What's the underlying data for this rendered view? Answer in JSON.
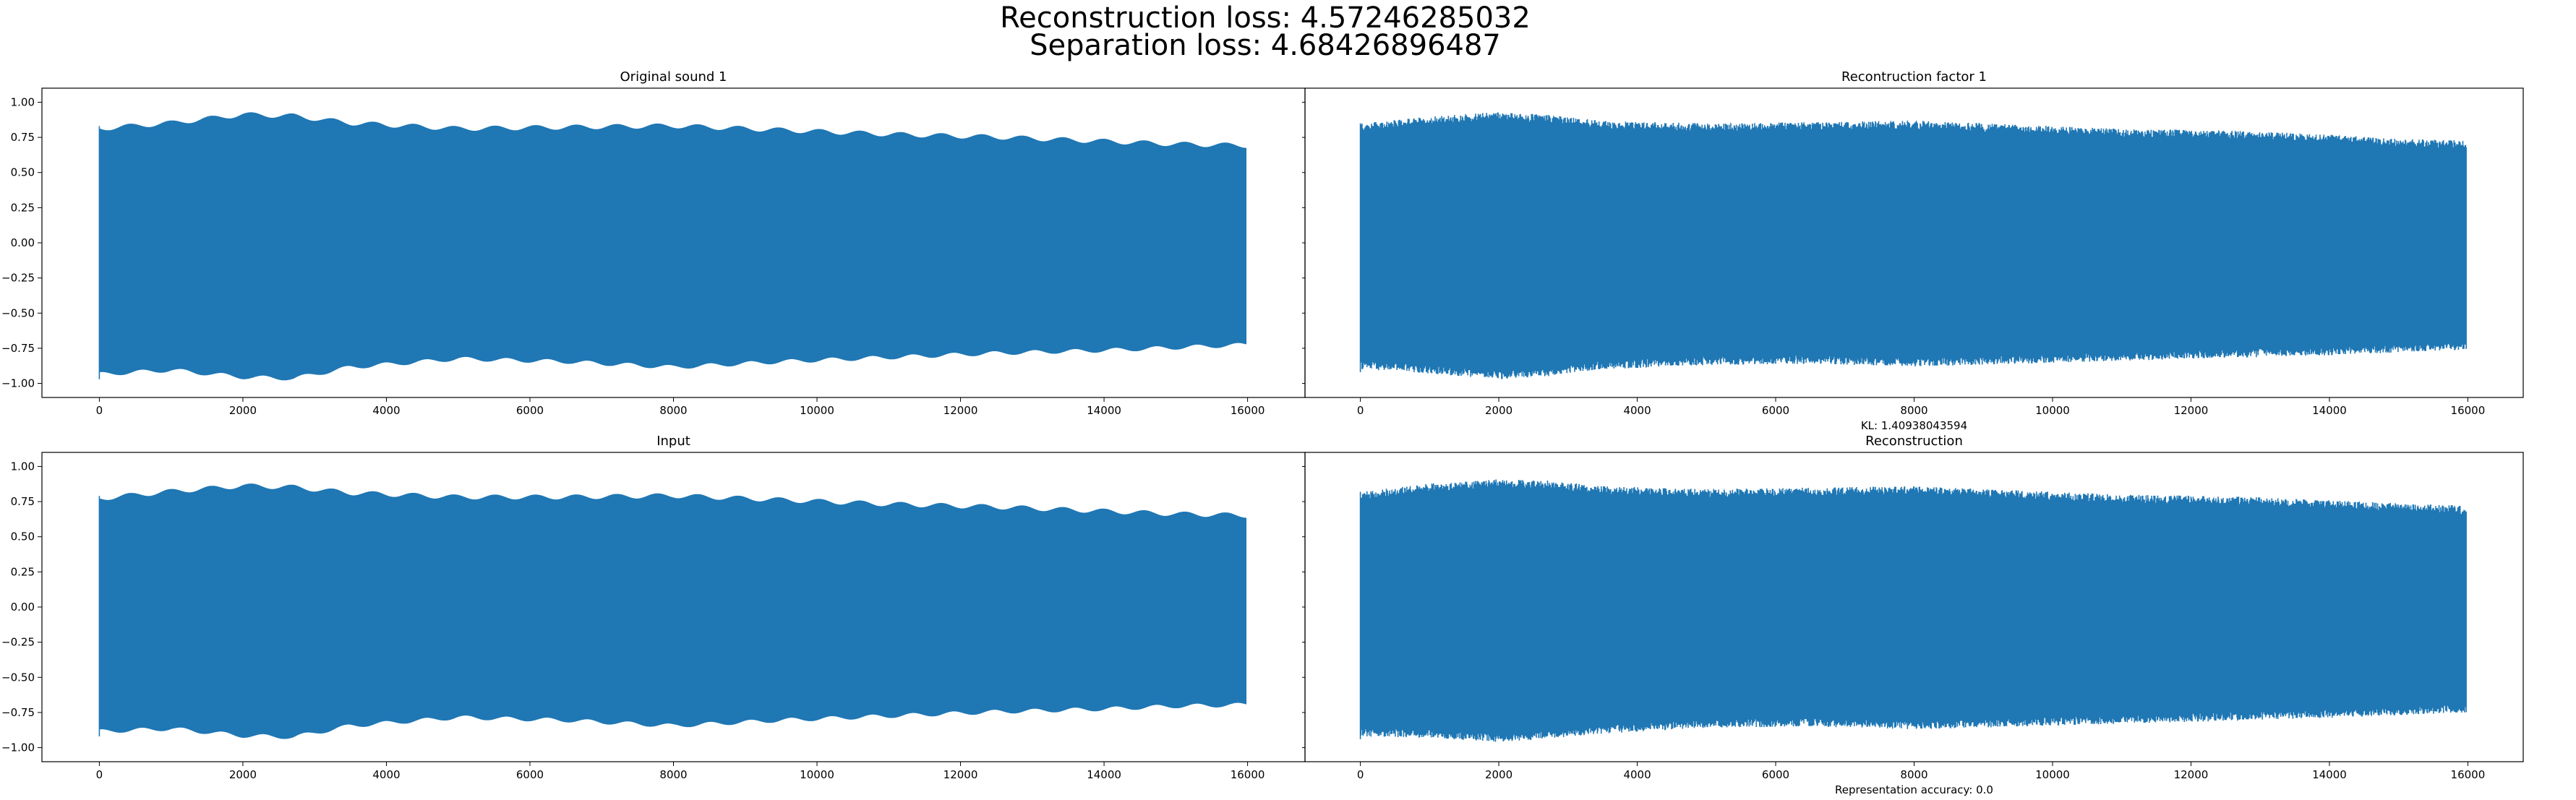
{
  "figure": {
    "suptitle_lines": [
      "Reconstruction loss: 4.57246285032",
      "Separation loss: 4.68426896487"
    ]
  },
  "style": {
    "series_color": "#1f77b4",
    "background": "#ffffff",
    "axis_color": "#000000"
  },
  "chart_data": [
    {
      "type": "line",
      "title": "Original sound 1",
      "xlabel": "",
      "ylabel": "",
      "xlim": [
        -800,
        16800
      ],
      "ylim": [
        -1.1,
        1.1
      ],
      "xticks": [
        0,
        2000,
        4000,
        6000,
        8000,
        10000,
        12000,
        14000,
        16000
      ],
      "yticks": [
        1.0,
        0.75,
        0.5,
        0.25,
        0.0,
        -0.25,
        -0.5,
        -0.75,
        -1.0
      ],
      "ytick_labels": [
        "1.00",
        "0.75",
        "0.50",
        "0.25",
        "0.00",
        "−0.25",
        "−0.50",
        "−0.75",
        "−1.00"
      ],
      "grid": false,
      "series": [
        {
          "n_samples": 16000,
          "envelope_x": [
            0,
            1000,
            2000,
            2700,
            3500,
            5000,
            6500,
            8000,
            9500,
            11000,
            12500,
            14000,
            15000,
            15980
          ],
          "envelope_upper": [
            0.83,
            0.87,
            0.93,
            0.92,
            0.87,
            0.83,
            0.84,
            0.85,
            0.82,
            0.79,
            0.77,
            0.74,
            0.72,
            0.71
          ],
          "envelope_lower": [
            -0.95,
            -0.92,
            -0.97,
            -0.98,
            -0.9,
            -0.84,
            -0.86,
            -0.9,
            -0.86,
            -0.83,
            -0.8,
            -0.78,
            -0.76,
            -0.74
          ]
        }
      ]
    },
    {
      "type": "line",
      "title": "Recontruction factor 1",
      "xlabel": "KL: 1.40938043594",
      "ylabel": "",
      "xlim": [
        -800,
        16800
      ],
      "ylim": [
        -1.1,
        1.1
      ],
      "xticks": [
        0,
        2000,
        4000,
        6000,
        8000,
        10000,
        12000,
        14000,
        16000
      ],
      "yticks": [],
      "grid": false,
      "series": [
        {
          "n_samples": 16000,
          "envelope_x": [
            0,
            1000,
            2000,
            2700,
            3500,
            5000,
            6500,
            8000,
            9500,
            11000,
            12500,
            14000,
            15000,
            15980
          ],
          "envelope_upper": [
            0.85,
            0.9,
            0.93,
            0.91,
            0.87,
            0.85,
            0.86,
            0.87,
            0.84,
            0.81,
            0.8,
            0.77,
            0.74,
            0.73
          ],
          "envelope_lower": [
            -0.9,
            -0.93,
            -0.97,
            -0.95,
            -0.9,
            -0.87,
            -0.86,
            -0.88,
            -0.86,
            -0.84,
            -0.82,
            -0.8,
            -0.78,
            -0.76
          ]
        }
      ]
    },
    {
      "type": "line",
      "title": "Input",
      "xlabel": "",
      "ylabel": "",
      "xlim": [
        -800,
        16800
      ],
      "ylim": [
        -1.1,
        1.1
      ],
      "xticks": [
        0,
        2000,
        4000,
        6000,
        8000,
        10000,
        12000,
        14000,
        16000
      ],
      "yticks": [
        1.0,
        0.75,
        0.5,
        0.25,
        0.0,
        -0.25,
        -0.5,
        -0.75,
        -1.0
      ],
      "ytick_labels": [
        "1.00",
        "0.75",
        "0.50",
        "0.25",
        "0.00",
        "−0.25",
        "−0.50",
        "−0.75",
        "−1.00"
      ],
      "grid": false,
      "series": [
        {
          "n_samples": 16000,
          "envelope_x": [
            0,
            1000,
            2000,
            2700,
            3500,
            5000,
            6500,
            8000,
            9500,
            11000,
            12500,
            14000,
            15000,
            15980
          ],
          "envelope_upper": [
            0.79,
            0.84,
            0.88,
            0.87,
            0.83,
            0.8,
            0.8,
            0.81,
            0.78,
            0.75,
            0.73,
            0.7,
            0.68,
            0.67
          ],
          "envelope_lower": [
            -0.9,
            -0.88,
            -0.93,
            -0.94,
            -0.86,
            -0.8,
            -0.82,
            -0.86,
            -0.82,
            -0.79,
            -0.76,
            -0.74,
            -0.72,
            -0.71
          ]
        }
      ]
    },
    {
      "type": "line",
      "title": "Reconstruction",
      "xlabel": "Representation accuracy: 0.0",
      "ylabel": "",
      "xlim": [
        -800,
        16800
      ],
      "ylim": [
        -1.1,
        1.1
      ],
      "xticks": [
        0,
        2000,
        4000,
        6000,
        8000,
        10000,
        12000,
        14000,
        16000
      ],
      "yticks": [],
      "grid": false,
      "series": [
        {
          "n_samples": 16000,
          "envelope_x": [
            0,
            1000,
            2000,
            2700,
            3500,
            5000,
            6500,
            8000,
            9500,
            11000,
            12500,
            14000,
            15000,
            15980
          ],
          "envelope_upper": [
            0.82,
            0.88,
            0.91,
            0.9,
            0.86,
            0.84,
            0.85,
            0.86,
            0.83,
            0.8,
            0.79,
            0.76,
            0.74,
            0.72
          ],
          "envelope_lower": [
            -0.92,
            -0.93,
            -0.96,
            -0.94,
            -0.9,
            -0.86,
            -0.85,
            -0.87,
            -0.85,
            -0.83,
            -0.81,
            -0.79,
            -0.77,
            -0.75
          ]
        }
      ]
    }
  ]
}
